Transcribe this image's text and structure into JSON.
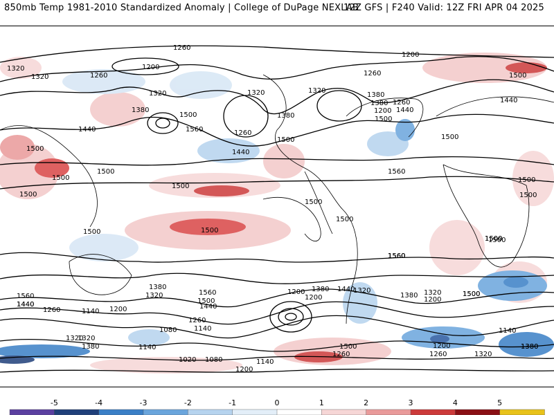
{
  "header": {
    "left_title": "850mb Temp 1981-2010 Standardized Anomaly | College of DuPage NEXLAB",
    "right_title": "12Z GFS | F240 Valid: 12Z FRI APR 04 2025"
  },
  "colorbar": {
    "ticks": [
      "-5",
      "-4",
      "-3",
      "-2",
      "-1",
      "0",
      "1",
      "2",
      "3",
      "4",
      "5"
    ],
    "colors": [
      "#5b3fa0",
      "#1f3f7a",
      "#3a7fc6",
      "#6aa5dc",
      "#b6d3ee",
      "#e3eef8",
      "#ffffff",
      "#f6d6d6",
      "#e99a9a",
      "#cc3a3a",
      "#8a0f14",
      "#e8c21a"
    ]
  },
  "map": {
    "contour_labels": [
      "1260",
      "1200",
      "1320",
      "1260",
      "1380",
      "1320",
      "1200",
      "1260",
      "1500",
      "1320",
      "1380",
      "1560",
      "1440",
      "1500",
      "1260",
      "1440",
      "1500",
      "1380",
      "1260",
      "1200",
      "1500",
      "1500",
      "1320",
      "1380",
      "1440",
      "1500",
      "1560",
      "1500",
      "1500",
      "1500",
      "1500",
      "1500",
      "1500",
      "1500",
      "1560",
      "1500",
      "1500",
      "1380",
      "1560",
      "1320",
      "1500",
      "1440",
      "1560",
      "1200",
      "1380",
      "1440",
      "1260",
      "1440",
      "1320",
      "1380",
      "1200",
      "1500",
      "1140",
      "1200",
      "1260",
      "1140",
      "1320",
      "1380",
      "1080",
      "1140",
      "1320",
      "1260",
      "1020",
      "1080",
      "1140",
      "1200",
      "1200",
      "1140",
      "1260",
      "1320",
      "1380",
      "1500",
      "1440",
      "1320",
      "1500",
      "1500",
      "1560",
      "1500",
      "1200",
      "1440",
      "1320",
      "1500",
      "1560",
      "1500",
      "1380"
    ]
  }
}
